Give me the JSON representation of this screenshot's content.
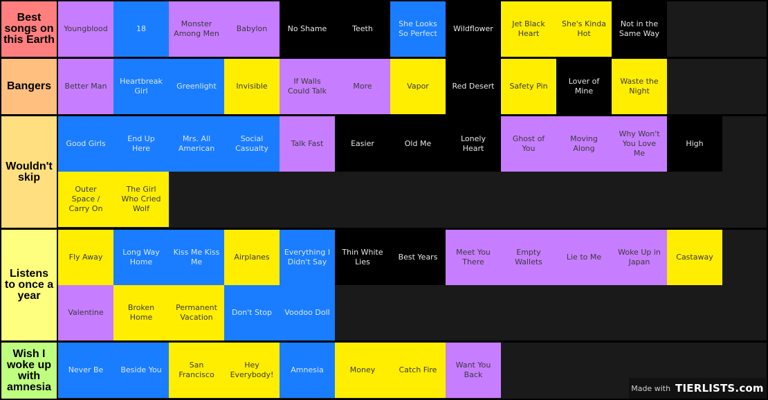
{
  "tiers": [
    {
      "label": "Best songs on this Earth",
      "color": "#ff7f7f",
      "items": [
        {
          "title": "Youngblood",
          "color": "purple"
        },
        {
          "title": "18",
          "color": "blue"
        },
        {
          "title": "Monster Among Men",
          "color": "purple"
        },
        {
          "title": "Babylon",
          "color": "purple"
        },
        {
          "title": "No Shame",
          "color": "black"
        },
        {
          "title": "Teeth",
          "color": "black"
        },
        {
          "title": "She Looks So Perfect",
          "color": "blue"
        },
        {
          "title": "Wildflower",
          "color": "black"
        },
        {
          "title": "Jet Black Heart",
          "color": "yellow"
        },
        {
          "title": "She's Kinda Hot",
          "color": "yellow"
        },
        {
          "title": "Not in the Same Way",
          "color": "black"
        }
      ]
    },
    {
      "label": "Bangers",
      "color": "#ffbf7f",
      "items": [
        {
          "title": "Better Man",
          "color": "purple"
        },
        {
          "title": "Heartbreak Girl",
          "color": "blue"
        },
        {
          "title": "Greenlight",
          "color": "blue"
        },
        {
          "title": "Invisible",
          "color": "yellow"
        },
        {
          "title": "If Walls Could Talk",
          "color": "purple"
        },
        {
          "title": "More",
          "color": "purple"
        },
        {
          "title": "Vapor",
          "color": "yellow"
        },
        {
          "title": "Red Desert",
          "color": "black"
        },
        {
          "title": "Safety Pin",
          "color": "yellow"
        },
        {
          "title": "Lover of Mine",
          "color": "black"
        },
        {
          "title": "Waste the Night",
          "color": "yellow"
        }
      ]
    },
    {
      "label": "Wouldn't skip",
      "color": "#ffdf7f",
      "items": [
        {
          "title": "Good Girls",
          "color": "blue"
        },
        {
          "title": "End Up Here",
          "color": "blue"
        },
        {
          "title": "Mrs. All American",
          "color": "blue"
        },
        {
          "title": "Social Casualty",
          "color": "blue"
        },
        {
          "title": "Talk Fast",
          "color": "purple"
        },
        {
          "title": "Easier",
          "color": "black"
        },
        {
          "title": "Old Me",
          "color": "black"
        },
        {
          "title": "Lonely Heart",
          "color": "black"
        },
        {
          "title": "Ghost of You",
          "color": "purple"
        },
        {
          "title": "Moving Along",
          "color": "purple"
        },
        {
          "title": "Why Won't You Love Me",
          "color": "purple"
        },
        {
          "title": "High",
          "color": "black"
        },
        {
          "title": "Outer Space / Carry On",
          "color": "yellow"
        },
        {
          "title": "The Girl Who Cried Wolf",
          "color": "yellow"
        }
      ]
    },
    {
      "label": "Listens to once a year",
      "color": "#ffff7f",
      "items": [
        {
          "title": "Fly Away",
          "color": "yellow"
        },
        {
          "title": "Long Way Home",
          "color": "blue"
        },
        {
          "title": "Kiss Me Kiss Me",
          "color": "blue"
        },
        {
          "title": "Airplanes",
          "color": "yellow"
        },
        {
          "title": "Everything I Didn't Say",
          "color": "blue"
        },
        {
          "title": "Thin White Lies",
          "color": "black"
        },
        {
          "title": "Best Years",
          "color": "black"
        },
        {
          "title": "Meet You There",
          "color": "purple"
        },
        {
          "title": "Empty Wallets",
          "color": "purple"
        },
        {
          "title": "Lie to Me",
          "color": "purple"
        },
        {
          "title": "Woke Up in Japan",
          "color": "purple"
        },
        {
          "title": "Castaway",
          "color": "yellow"
        },
        {
          "title": "Valentine",
          "color": "purple"
        },
        {
          "title": "Broken Home",
          "color": "yellow"
        },
        {
          "title": "Permanent Vacation",
          "color": "yellow"
        },
        {
          "title": "Don't Stop",
          "color": "blue"
        },
        {
          "title": "Voodoo Doll",
          "color": "blue"
        }
      ]
    },
    {
      "label": "Wish I woke up with amnesia",
      "color": "#bfff7f",
      "items": [
        {
          "title": "Never Be",
          "color": "blue"
        },
        {
          "title": "Beside You",
          "color": "blue"
        },
        {
          "title": "San Francisco",
          "color": "yellow"
        },
        {
          "title": "Hey Everybody!",
          "color": "yellow"
        },
        {
          "title": "Amnesia",
          "color": "blue"
        },
        {
          "title": "Money",
          "color": "yellow"
        },
        {
          "title": "Catch Fire",
          "color": "yellow"
        },
        {
          "title": "Want You Back",
          "color": "purple"
        }
      ]
    }
  ],
  "watermark": {
    "prefix": "Made with",
    "brand": "TIERLISTS.com"
  }
}
